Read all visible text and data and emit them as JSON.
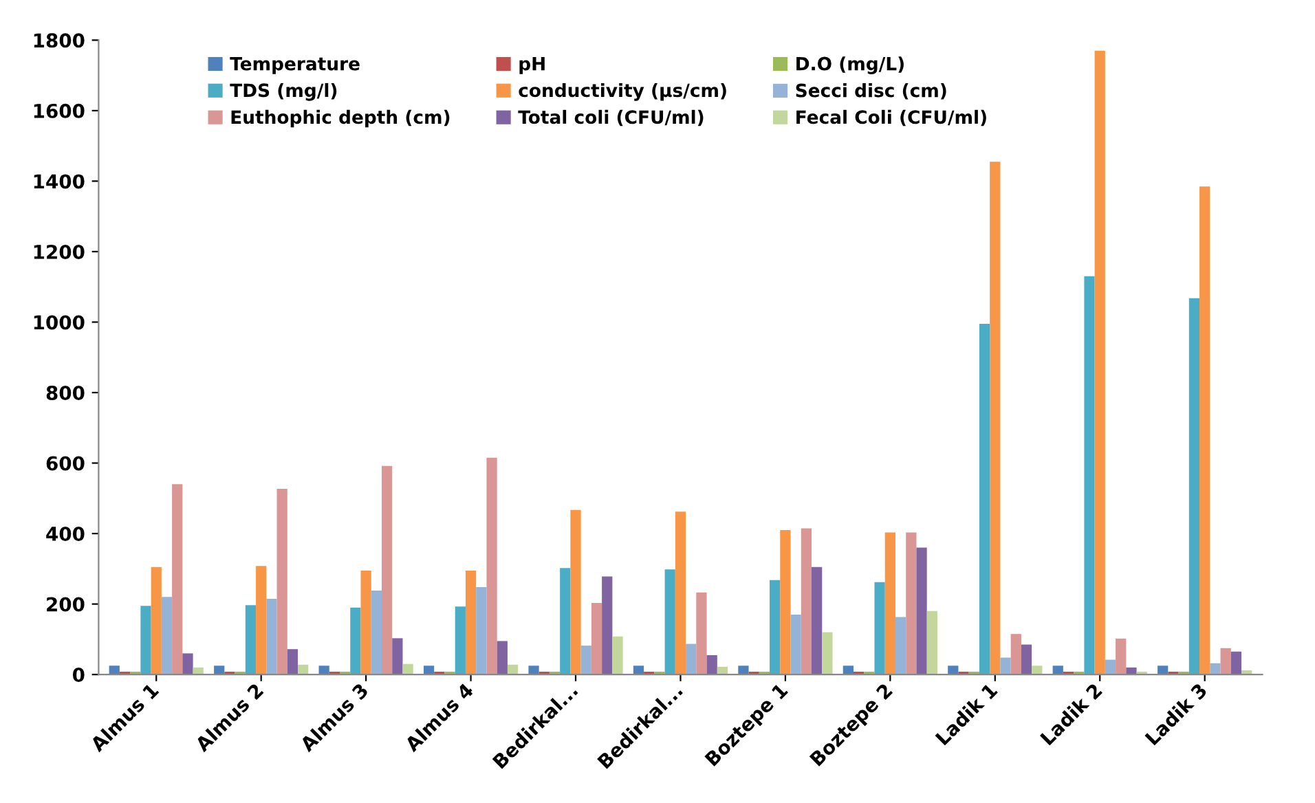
{
  "chart_data": {
    "type": "bar",
    "categories": [
      "Almus 1",
      "Almus 2",
      "Almus 3",
      "Almus 4",
      "Bedirkal...",
      "Bedirkal...",
      "Boztepe 1",
      "Boztepe 2",
      "Ladik 1",
      "Ladik 2",
      "Ladik 3"
    ],
    "ylim": [
      0,
      1800
    ],
    "yticks": [
      0,
      200,
      400,
      600,
      800,
      1000,
      1200,
      1400,
      1600,
      1800
    ],
    "grid": false,
    "legend": "top",
    "series": [
      {
        "name": "Temperature",
        "color": "#4f81bd",
        "values": [
          25,
          25,
          25,
          25,
          25,
          25,
          25,
          25,
          25,
          25,
          25
        ]
      },
      {
        "name": "pH",
        "color": "#c0504d",
        "values": [
          8,
          8,
          8,
          8,
          8,
          8,
          8,
          8,
          8,
          8,
          8
        ]
      },
      {
        "name": "D.O (mg/L)",
        "color": "#9bbb59",
        "values": [
          8,
          8,
          8,
          8,
          8,
          8,
          8,
          8,
          8,
          8,
          8
        ]
      },
      {
        "name": "TDS (mg/l)",
        "color": "#4bacc6",
        "values": [
          195,
          197,
          190,
          193,
          302,
          298,
          268,
          262,
          995,
          1130,
          1068
        ]
      },
      {
        "name": "conductivity (µs/cm)",
        "color": "#f79646",
        "values": [
          305,
          308,
          295,
          295,
          467,
          462,
          410,
          403,
          1455,
          1770,
          1385
        ]
      },
      {
        "name": "Secci disc (cm)",
        "color": "#95b3d7",
        "values": [
          220,
          215,
          238,
          248,
          82,
          87,
          170,
          163,
          48,
          42,
          32
        ]
      },
      {
        "name": "Euthophic depth (cm)",
        "color": "#d99694",
        "values": [
          540,
          527,
          592,
          615,
          203,
          233,
          415,
          403,
          115,
          102,
          75
        ]
      },
      {
        "name": "Total coli (CFU/ml)",
        "color": "#8064a2",
        "values": [
          60,
          72,
          103,
          95,
          278,
          55,
          305,
          360,
          85,
          20,
          65
        ]
      },
      {
        "name": "Fecal Coli (CFU/ml)",
        "color": "#c3d69b",
        "values": [
          20,
          28,
          30,
          28,
          108,
          22,
          120,
          180,
          25,
          8,
          12
        ]
      }
    ]
  }
}
